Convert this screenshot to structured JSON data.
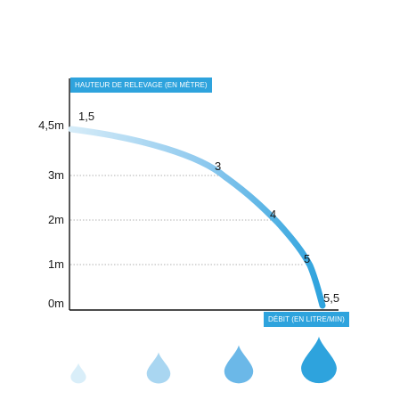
{
  "chart_data": {
    "type": "line",
    "ylabel": "HAUTEUR DE RELEVAGE (EN MÈTRE)",
    "xlabel": "DÉBIT (EN LITRE/MIN)",
    "y_ticks": [
      "4,5m",
      "3m",
      "2m",
      "1m",
      "0m"
    ],
    "y_tick_values": [
      4.5,
      3,
      2,
      1,
      0
    ],
    "ylim": [
      0,
      4.5
    ],
    "grid": "dotted horizontal",
    "series": [
      {
        "points": [
          {
            "label": "1,5",
            "height": 4.5
          },
          {
            "label": "3",
            "height": 3.0
          },
          {
            "label": "4",
            "height": 2.0
          },
          {
            "label": "5",
            "height": 1.0
          },
          {
            "label": "5,5",
            "height": 0.0
          }
        ]
      }
    ],
    "colors": {
      "axis_box": "#2ea3dd",
      "curve_start": "#d6ecf8",
      "curve_end": "#2ea3dd",
      "grid": "#999999",
      "axis": "#111111"
    },
    "drops": [
      {
        "level": 1,
        "color": "#d9eef9"
      },
      {
        "level": 2,
        "color": "#a9d6f1"
      },
      {
        "level": 3,
        "color": "#6bb8e8"
      },
      {
        "level": 4,
        "color": "#2ea3dd"
      }
    ]
  }
}
